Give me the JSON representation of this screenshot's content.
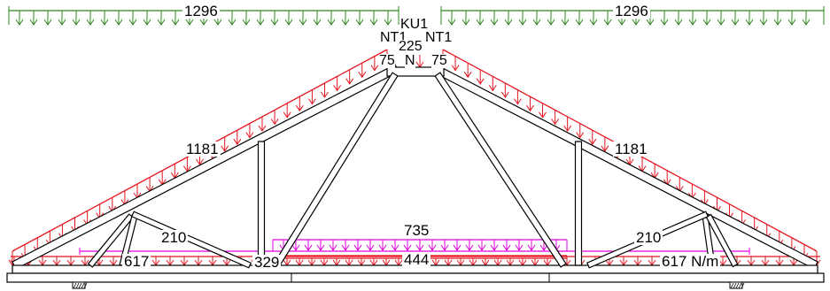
{
  "colors": {
    "background": "#ffffff",
    "members": "#000000",
    "snow_load": "#2e8b1e",
    "roof_load": "#e8141e",
    "ceiling_load": "#e000e0"
  },
  "loads": {
    "snow_left": "1296",
    "snow_right": "1296",
    "roof_left": "1181",
    "roof_right": "1181",
    "ceiling_live": "735",
    "ceiling_dead": "444",
    "ceiling_small": "329",
    "bottom_left_inner": "210",
    "bottom_right_inner": "210",
    "bottom_left": "617",
    "bottom_right": "617 N/m"
  },
  "apex": {
    "ku_label": "KU1",
    "nt_left": "NT1",
    "nt_right": "NT1",
    "center_value": "225",
    "n_label": "N",
    "val_left": "75",
    "val_right": "75"
  }
}
